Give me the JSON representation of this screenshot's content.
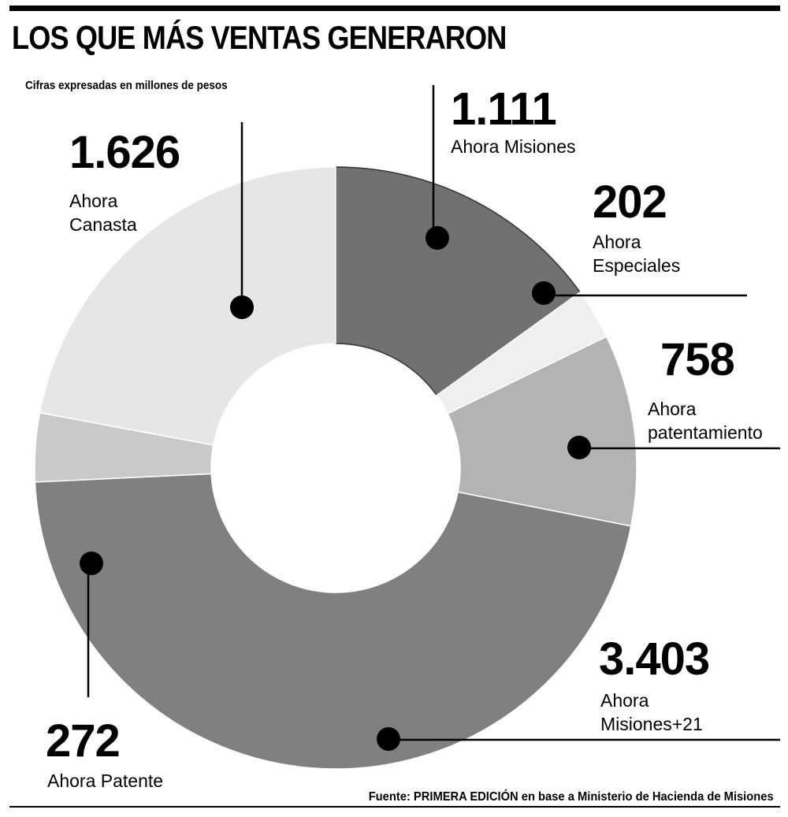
{
  "title": "LOS QUE MÁS VENTAS GENERARON",
  "subtitle": "Cifras expresadas en millones de pesos",
  "source": "Fuente: PRIMERA EDICIÓN en base a Ministerio de Hacienda de Misiones",
  "chart_data": {
    "type": "pie",
    "variant": "donut",
    "title": "LOS QUE MÁS VENTAS GENERARON",
    "unit": "millones de pesos",
    "slices": [
      {
        "label": "Ahora Misiones",
        "display": "1.111",
        "value": 1111,
        "color": "#717171"
      },
      {
        "label": "Ahora\nEspeciales",
        "display": "202",
        "value": 202,
        "color": "#efefef"
      },
      {
        "label": "Ahora\npatentamiento",
        "display": "758",
        "value": 758,
        "color": "#b3b3b3"
      },
      {
        "label": "Ahora\nMisiones+21",
        "display": "3.403",
        "value": 3403,
        "color": "#808080"
      },
      {
        "label": "Ahora Patente",
        "display": "272",
        "value": 272,
        "color": "#c9c9c9"
      },
      {
        "label": "Ahora\nCanasta",
        "display": "1.626",
        "value": 1626,
        "color": "#e6e6e6"
      }
    ]
  }
}
